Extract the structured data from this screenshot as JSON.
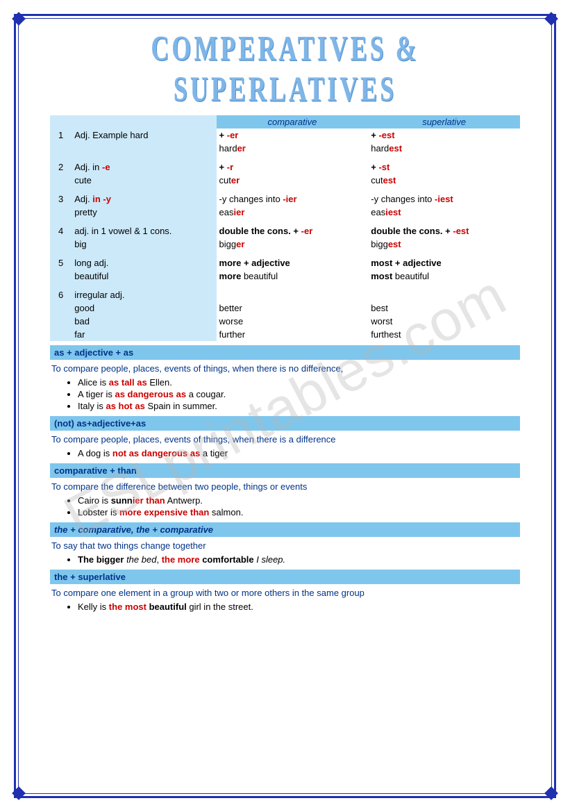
{
  "title": "COMPERATIVES & SUPERLATIVES",
  "watermark": "ESLprintables.com",
  "colors": {
    "border": "#2030b0",
    "band": "#7fc6ed",
    "lightblue": "#cce9fa",
    "red": "#cc0000",
    "navy": "#003388",
    "title": "#7fb6e8"
  },
  "table": {
    "headers": {
      "comparative": "comparative",
      "superlative": "superlative"
    },
    "rows": [
      {
        "num": "1",
        "desc1": "Adj. Example hard",
        "desc2": "",
        "comp_rule_plain": "+ ",
        "comp_rule_red": "-er",
        "comp_ex_plain": "hard",
        "comp_ex_red": "er",
        "sup_rule_plain": "+ ",
        "sup_rule_red": "-est",
        "sup_ex_plain": "hard",
        "sup_ex_red": "est"
      },
      {
        "num": "2",
        "desc_pre": "Adj. in ",
        "desc_red": "-e",
        "desc2": "cute",
        "comp_rule_plain": "+ ",
        "comp_rule_red": "-r",
        "comp_ex_plain": "cut",
        "comp_ex_red": "er",
        "sup_rule_plain": "+ ",
        "sup_rule_red": "-st",
        "sup_ex_plain": "cut",
        "sup_ex_red": "est"
      },
      {
        "num": "3",
        "desc_pre": "Adj. ",
        "desc_red": "in -y",
        "desc2": "pretty",
        "comp_rule_plain": "-y changes into ",
        "comp_rule_red": "-ier",
        "comp_ex_plain": "eas",
        "comp_ex_red": "ier",
        "sup_rule_plain": "-y changes into ",
        "sup_rule_red": "-iest",
        "sup_ex_plain": "eas",
        "sup_ex_red": "iest"
      },
      {
        "num": "4",
        "desc1": "adj. in 1 vowel & 1 cons.",
        "desc2": "big",
        "comp_rule_bold": "double the cons. + ",
        "comp_rule_red": "-er",
        "comp_ex_plain": "bigg",
        "comp_ex_red": "er",
        "sup_rule_bold": "double the cons. + ",
        "sup_rule_red": "-est",
        "sup_ex_plain": "bigg",
        "sup_ex_red": "est"
      },
      {
        "num": "5",
        "desc1": "long adj.",
        "desc2": "beautiful",
        "comp_rule_bold1": "more",
        "comp_rule_bold2": " + adjective",
        "comp_ex_bold": "more",
        "comp_ex_plain": " beautiful",
        "sup_rule_bold1": "most",
        "sup_rule_bold2": " + adjective",
        "sup_ex_bold": "most",
        "sup_ex_plain": " beautiful"
      },
      {
        "num": "6",
        "desc1": "irregular adj.",
        "items": [
          {
            "adj": "good",
            "comp": "better",
            "sup": "best"
          },
          {
            "adj": "bad",
            "comp": "worse",
            "sup": "worst"
          },
          {
            "adj": "far",
            "comp": "further",
            "sup": "furthest"
          }
        ]
      }
    ]
  },
  "sections": [
    {
      "heading": "as + adjective + as",
      "text": "To compare people, places, events of things, when there is no difference,",
      "bullets": [
        {
          "parts": [
            {
              "t": "Alice is "
            },
            {
              "t": "as tall as",
              "red": true,
              "bold": true
            },
            {
              "t": " Ellen."
            }
          ]
        },
        {
          "parts": [
            {
              "t": "A tiger is "
            },
            {
              "t": "as dangerous as",
              "red": true,
              "bold": true
            },
            {
              "t": " a cougar."
            }
          ]
        },
        {
          "parts": [
            {
              "t": "Italy is "
            },
            {
              "t": "as hot as",
              "red": true,
              "bold": true
            },
            {
              "t": " Spain  in summer."
            }
          ]
        }
      ]
    },
    {
      "heading": "(not) as+adjective+as",
      "text": "To compare people, places, events of things, when there is a difference",
      "bullets": [
        {
          "parts": [
            {
              "t": "A dog is "
            },
            {
              "t": "not as dangerous as",
              "red": true,
              "bold": true
            },
            {
              "t": " a tiger"
            }
          ]
        }
      ]
    },
    {
      "heading": "comparative + than",
      "text": "To compare the difference between two people, things or events",
      "bullets": [
        {
          "parts": [
            {
              "t": "Cairo is "
            },
            {
              "t": "sunn",
              "bold": true
            },
            {
              "t": "ier than",
              "red": true,
              "bold": true
            },
            {
              "t": " Antwerp."
            }
          ]
        },
        {
          "parts": [
            {
              "t": "Lobster is "
            },
            {
              "t": "more expensive than",
              "red": true,
              "bold": true
            },
            {
              "t": " salmon."
            }
          ]
        }
      ]
    },
    {
      "heading": "the + comparative, the + comparative",
      "italic": true,
      "text": "To say that two things change together",
      "bullets": [
        {
          "parts": [
            {
              "t": "The bigger",
              "bold": true
            },
            {
              "t": " the bed",
              "italic": true
            },
            {
              "t": ", "
            },
            {
              "t": "the more",
              "red": true,
              "bold": true
            },
            {
              "t": " comfortable",
              "bold": true
            },
            {
              "t": " I sleep.",
              "italic": true
            }
          ]
        }
      ]
    },
    {
      "heading": "the + superlative",
      "text": "To compare one element in a group with two or more others in the same group",
      "bullets": [
        {
          "parts": [
            {
              "t": "Kelly is "
            },
            {
              "t": "the most",
              "red": true,
              "bold": true
            },
            {
              "t": " beautiful",
              "bold": true
            },
            {
              "t": " girl in the street."
            }
          ]
        }
      ]
    }
  ]
}
